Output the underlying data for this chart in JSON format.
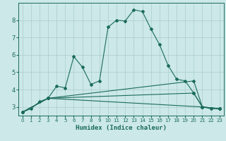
{
  "xlabel": "Humidex (Indice chaleur)",
  "bg_color": "#cce8e8",
  "grid_color": "#aacccc",
  "line_color": "#1a6b5a",
  "xlim": [
    -0.5,
    23.5
  ],
  "ylim": [
    2.5,
    9.0
  ],
  "xticks": [
    0,
    1,
    2,
    3,
    4,
    5,
    6,
    7,
    8,
    9,
    10,
    11,
    12,
    13,
    14,
    15,
    16,
    17,
    18,
    19,
    20,
    21,
    22,
    23
  ],
  "yticks": [
    3,
    4,
    5,
    6,
    7,
    8
  ],
  "series": [
    [
      0,
      2.7
    ],
    [
      1,
      2.9
    ],
    [
      2,
      3.3
    ],
    [
      3,
      3.5
    ],
    [
      4,
      4.2
    ],
    [
      5,
      4.1
    ],
    [
      6,
      5.9
    ],
    [
      7,
      5.3
    ],
    [
      8,
      4.3
    ],
    [
      9,
      4.5
    ],
    [
      10,
      7.6
    ],
    [
      11,
      8.0
    ],
    [
      12,
      7.95
    ],
    [
      13,
      8.6
    ],
    [
      14,
      8.5
    ],
    [
      15,
      7.5
    ],
    [
      16,
      6.6
    ],
    [
      17,
      5.4
    ],
    [
      18,
      4.6
    ],
    [
      19,
      4.5
    ],
    [
      20,
      3.8
    ],
    [
      21,
      3.0
    ],
    [
      22,
      2.9
    ],
    [
      23,
      2.9
    ]
  ],
  "line2": [
    [
      0,
      2.7
    ],
    [
      3,
      3.5
    ],
    [
      20,
      4.5
    ],
    [
      21,
      3.0
    ],
    [
      23,
      2.9
    ]
  ],
  "line3": [
    [
      0,
      2.7
    ],
    [
      3,
      3.5
    ],
    [
      20,
      3.8
    ],
    [
      21,
      3.0
    ],
    [
      23,
      2.9
    ]
  ],
  "line4": [
    [
      0,
      2.7
    ],
    [
      3,
      3.5
    ],
    [
      21,
      3.0
    ],
    [
      23,
      2.9
    ]
  ]
}
